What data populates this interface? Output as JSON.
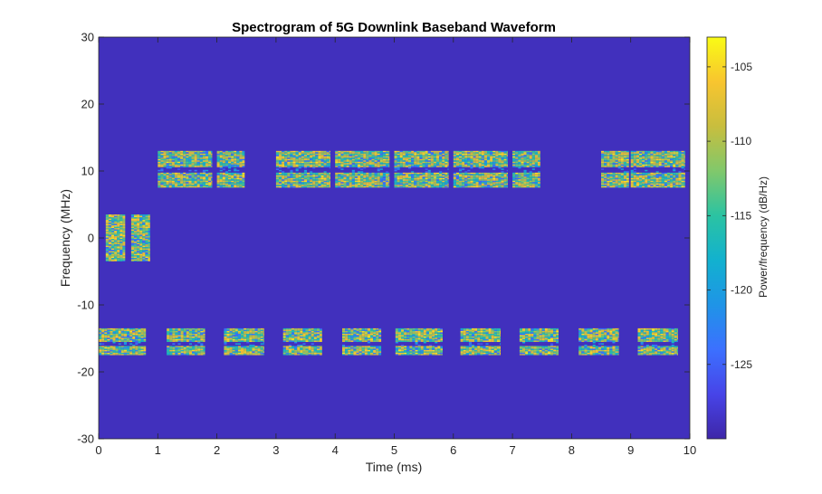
{
  "chart_data": {
    "type": "heatmap",
    "title": "Spectrogram of 5G Downlink Baseband Waveform",
    "xlabel": "Time (ms)",
    "ylabel": "Frequency (MHz)",
    "colorbar_label": "Power/frequency (dB/Hz)",
    "xlim": [
      0,
      10
    ],
    "ylim": [
      -30,
      30
    ],
    "xticks": [
      0,
      1,
      2,
      3,
      4,
      5,
      6,
      7,
      8,
      9,
      10
    ],
    "yticks": [
      -30,
      -20,
      -10,
      0,
      10,
      20,
      30
    ],
    "clim": [
      -130,
      -103
    ],
    "cticks": [
      -125,
      -120,
      -115,
      -110,
      -105
    ],
    "background_level": -129,
    "colormap": [
      "#3e26a8",
      "#4744e8",
      "#3c70ff",
      "#1f94e7",
      "#12b1cf",
      "#2bc3a2",
      "#81c86b",
      "#c8be3e",
      "#f8c52f",
      "#f9fb15"
    ],
    "bursts": [
      {
        "t_start": 0.12,
        "t_end": 0.45,
        "f_low": -3.5,
        "f_high": 3.5
      },
      {
        "t_start": 0.55,
        "t_end": 0.87,
        "f_low": -3.5,
        "f_high": 3.5
      },
      {
        "t_start": 1.0,
        "t_end": 1.92,
        "f_low": 7.5,
        "f_high": 13.0
      },
      {
        "t_start": 2.0,
        "t_end": 2.47,
        "f_low": 7.5,
        "f_high": 13.0
      },
      {
        "t_start": 3.0,
        "t_end": 3.92,
        "f_low": 7.5,
        "f_high": 13.0
      },
      {
        "t_start": 4.0,
        "t_end": 4.92,
        "f_low": 7.5,
        "f_high": 13.0
      },
      {
        "t_start": 5.0,
        "t_end": 5.92,
        "f_low": 7.5,
        "f_high": 13.0
      },
      {
        "t_start": 6.0,
        "t_end": 6.92,
        "f_low": 7.5,
        "f_high": 13.0
      },
      {
        "t_start": 7.0,
        "t_end": 7.47,
        "f_low": 7.5,
        "f_high": 13.0
      },
      {
        "t_start": 8.5,
        "t_end": 8.97,
        "f_low": 7.5,
        "f_high": 13.0
      },
      {
        "t_start": 9.0,
        "t_end": 9.92,
        "f_low": 7.5,
        "f_high": 13.0
      },
      {
        "t_start": 0.0,
        "t_end": 0.8,
        "f_low": -17.5,
        "f_high": -13.5
      },
      {
        "t_start": 1.15,
        "t_end": 1.8,
        "f_low": -17.5,
        "f_high": -13.5
      },
      {
        "t_start": 2.12,
        "t_end": 2.8,
        "f_low": -17.5,
        "f_high": -13.5
      },
      {
        "t_start": 3.12,
        "t_end": 3.78,
        "f_low": -17.5,
        "f_high": -13.5
      },
      {
        "t_start": 4.12,
        "t_end": 4.78,
        "f_low": -17.5,
        "f_high": -13.5
      },
      {
        "t_start": 5.02,
        "t_end": 5.82,
        "f_low": -17.5,
        "f_high": -13.5
      },
      {
        "t_start": 6.12,
        "t_end": 6.8,
        "f_low": -17.5,
        "f_high": -13.5
      },
      {
        "t_start": 7.12,
        "t_end": 7.78,
        "f_low": -17.5,
        "f_high": -13.5
      },
      {
        "t_start": 8.12,
        "t_end": 8.8,
        "f_low": -17.5,
        "f_high": -13.5
      },
      {
        "t_start": 9.12,
        "t_end": 9.8,
        "f_low": -17.5,
        "f_high": -13.5
      }
    ],
    "grid": false
  }
}
